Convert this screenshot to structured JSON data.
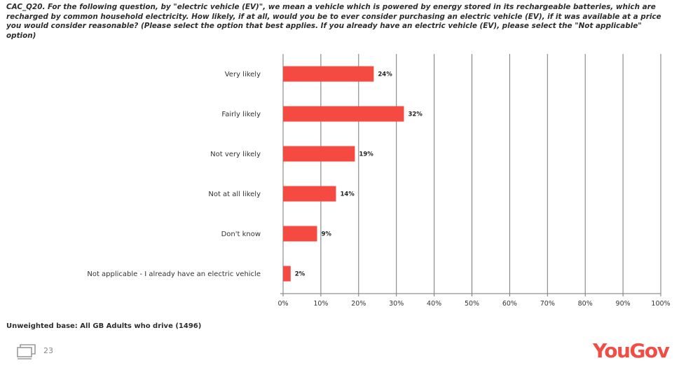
{
  "question": "CAC_Q20. For the following question, by \"electric vehicle (EV)\", we mean a vehicle which is powered by energy stored in its rechargeable batteries, which are recharged by common household electricity. How likely, if at all, would you be to ever consider purchasing an electric vehicle (EV), if it was available at a price you would consider reasonable? (Please select the option that best applies. If you already have an electric vehicle (EV), please select the \"Not applicable\" option)",
  "base_note": "Unweighted base: All GB Adults who drive (1496)",
  "page_number": "23",
  "logo_text": "YouGov",
  "colors": {
    "bar": "#f44a41",
    "logo": "#f04e45",
    "grid": "#777777"
  },
  "icons": {
    "slide": "slide-stack-icon"
  },
  "chart_data": {
    "type": "bar",
    "orientation": "horizontal",
    "categories": [
      "Very likely",
      "Fairly likely",
      "Not very likely",
      "Not at all likely",
      "Don't know",
      "Not applicable - I already have an electric vehicle"
    ],
    "values": [
      24,
      32,
      19,
      14,
      9,
      2
    ],
    "value_labels": [
      "24%",
      "32%",
      "19%",
      "14%",
      "9%",
      "2%"
    ],
    "xlim": [
      0,
      100
    ],
    "xticks": [
      "0%",
      "10%",
      "20%",
      "30%",
      "40%",
      "50%",
      "60%",
      "70%",
      "80%",
      "90%",
      "100%"
    ],
    "grid": true
  }
}
